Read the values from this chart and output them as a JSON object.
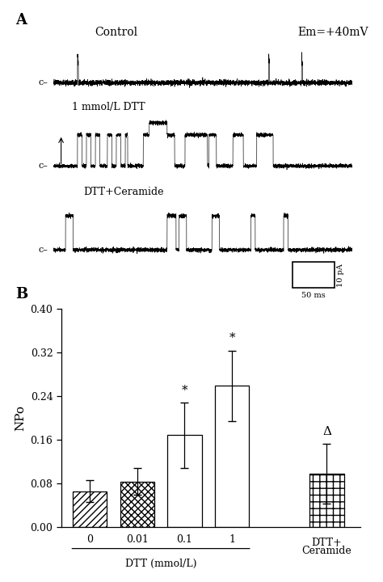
{
  "panel_A_label": "A",
  "panel_B_label": "B",
  "control_label": "Control",
  "em_label": "Em=+40mV",
  "trace1_label": "1 mmol/L DTT",
  "trace3_label": "DTT+Ceramide",
  "scale_x_label": "50 ms",
  "scale_y_label": "10 pA",
  "bar_values": [
    0.065,
    0.083,
    0.168,
    0.258,
    0.097
  ],
  "bar_errors": [
    0.02,
    0.025,
    0.06,
    0.065,
    0.055
  ],
  "bar_labels": [
    "0",
    "0.01",
    "0.1",
    "1",
    "DTT+\nCeramide"
  ],
  "xlabel_group1": "DTT (mmol/L)",
  "ylabel": "NPo",
  "ylim": [
    0.0,
    0.4
  ],
  "yticks": [
    0.0,
    0.08,
    0.16,
    0.24,
    0.32,
    0.4
  ],
  "significance_markers": [
    "",
    "",
    "*",
    "*",
    "Δ"
  ],
  "background_color": "white",
  "figure_width": 4.74,
  "figure_height": 7.2
}
